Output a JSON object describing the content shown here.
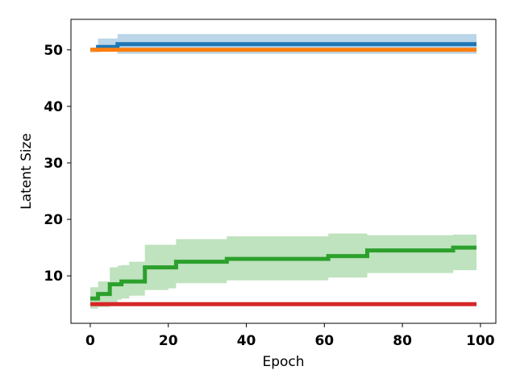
{
  "chart_data": {
    "type": "line",
    "title": "",
    "xlabel": "Epoch",
    "ylabel": "Latent Size",
    "xlim": [
      -4.95,
      103.95
    ],
    "ylim": [
      1.6,
      55.4
    ],
    "xticks": [
      0,
      20,
      40,
      60,
      80,
      100
    ],
    "yticks": [
      10,
      20,
      30,
      40,
      50
    ],
    "grid": false,
    "legend": "none",
    "x": [
      0,
      2,
      5,
      7,
      8,
      10,
      14,
      20,
      22,
      35,
      60,
      61,
      69,
      71,
      92,
      93,
      99
    ],
    "series": [
      {
        "color": "#1f77b4",
        "band_color": "#1f77b4",
        "values": [
          50,
          50.5,
          50.5,
          51,
          51,
          51,
          51,
          51,
          51,
          51,
          51,
          51,
          51,
          51,
          51,
          51,
          51
        ],
        "lower": [
          50,
          49.8,
          49.8,
          49.3,
          49.3,
          49.3,
          49.3,
          49.3,
          49.3,
          49.3,
          49.3,
          49.3,
          49.3,
          49.3,
          49.3,
          49.3,
          49.3
        ],
        "upper": [
          50,
          52,
          52,
          52.8,
          52.8,
          52.8,
          52.8,
          52.8,
          52.8,
          52.8,
          52.8,
          52.8,
          52.8,
          52.8,
          52.8,
          52.8,
          52.8
        ]
      },
      {
        "color": "#ff7f0e",
        "band_color": "#ff7f0e",
        "values": [
          50,
          50,
          50,
          50,
          50,
          50,
          50,
          50,
          50,
          50,
          50,
          50,
          50,
          50,
          50,
          50,
          50
        ],
        "lower": [
          50,
          50,
          50,
          50,
          50,
          50,
          50,
          50,
          50,
          50,
          50,
          50,
          50,
          50,
          50,
          50,
          50
        ],
        "upper": [
          50,
          50,
          50,
          50,
          50,
          50,
          50,
          50,
          50,
          50,
          50,
          50,
          50,
          50,
          50,
          50,
          50
        ]
      },
      {
        "color": "#2ca02c",
        "band_color": "#2ca02c",
        "values": [
          6,
          6.8,
          8.5,
          8.5,
          9,
          9,
          11.5,
          11.5,
          12.5,
          13,
          13,
          13.5,
          13.5,
          14.5,
          14.5,
          15,
          15
        ],
        "lower": [
          4.2,
          4.5,
          5.2,
          5.8,
          6,
          6.5,
          7.5,
          7.8,
          8.7,
          9.2,
          9.2,
          9.7,
          9.7,
          10.5,
          10.5,
          11,
          11
        ],
        "upper": [
          8,
          9,
          11.5,
          11.8,
          11.9,
          12.5,
          15.5,
          15.5,
          16.5,
          17,
          17,
          17.5,
          17.5,
          17.2,
          17.2,
          17.3,
          17.3
        ]
      },
      {
        "color": "#d62728",
        "band_color": "#d62728",
        "values": [
          5,
          5,
          5,
          5,
          5,
          5,
          5,
          5,
          5,
          5,
          5,
          5,
          5,
          5,
          5,
          5,
          5
        ],
        "lower": [
          5,
          5,
          5,
          5,
          5,
          5,
          5,
          5,
          5,
          5,
          5,
          5,
          5,
          5,
          5,
          5,
          5
        ],
        "upper": [
          5,
          5,
          5,
          5,
          5,
          5,
          5,
          5,
          5,
          5,
          5,
          5,
          5,
          5,
          5,
          5,
          5
        ]
      }
    ]
  }
}
